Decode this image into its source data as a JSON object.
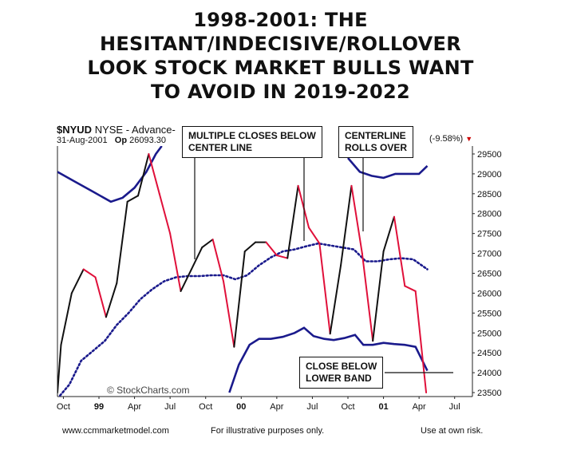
{
  "title_lines": [
    "1998-2001:  THE",
    "HESITANT/INDECISIVE/ROLLOVER",
    "LOOK STOCK MARKET BULLS WANT",
    "TO AVOID IN 2019-2022"
  ],
  "header": {
    "symbol": "$NYUD",
    "desc": "NYSE - Advance-",
    "date": "31-Aug-2001",
    "op_label": "Op",
    "op_value": "26093.30",
    "change": "(-9.58%)",
    "change_arrow": "▼"
  },
  "annotations": {
    "multiple_closes_1": "MULTIPLE CLOSES BELOW",
    "multiple_closes_2": "CENTER LINE",
    "centerline_1": "CENTERLINE",
    "centerline_2": "ROLLS OVER",
    "close_below_1": "CLOSE BELOW",
    "close_below_2": "LOWER BAND"
  },
  "watermark": "© StockCharts.com",
  "footer": {
    "left": "www.ccmmarketmodel.com",
    "center": "For illustrative purposes only.",
    "right": "Use at own risk."
  },
  "colors": {
    "up": "#111111",
    "down": "#e0103a",
    "bands": "#1a1a8c"
  },
  "chart_data": {
    "type": "line",
    "y_ticks": [
      23500,
      24000,
      24500,
      25000,
      25500,
      26000,
      26500,
      27000,
      27500,
      28000,
      28500,
      29000,
      29500
    ],
    "ylim": [
      23400,
      29700
    ],
    "x_ticks": [
      {
        "label": "Oct",
        "t": 0.5
      },
      {
        "label": "99",
        "t": 3.5
      },
      {
        "label": "Apr",
        "t": 6.5
      },
      {
        "label": "Jul",
        "t": 9.5
      },
      {
        "label": "Oct",
        "t": 12.5
      },
      {
        "label": "00",
        "t": 15.5
      },
      {
        "label": "Apr",
        "t": 18.5
      },
      {
        "label": "Jul",
        "t": 21.5
      },
      {
        "label": "Oct",
        "t": 24.5
      },
      {
        "label": "01",
        "t": 27.5
      },
      {
        "label": "Apr",
        "t": 30.5
      },
      {
        "label": "Jul",
        "t": 33.5
      }
    ],
    "xlim": [
      0,
      35
    ],
    "series": [
      {
        "t": 0,
        "v": 23500
      },
      {
        "t": 0.3,
        "v": 24700
      },
      {
        "t": 1.2,
        "v": 26000
      },
      {
        "t": 2.2,
        "v": 26600
      },
      {
        "t": 3.2,
        "v": 26400
      },
      {
        "t": 4.1,
        "v": 25400
      },
      {
        "t": 5.0,
        "v": 26250
      },
      {
        "t": 5.9,
        "v": 28300
      },
      {
        "t": 6.8,
        "v": 28450
      },
      {
        "t": 7.7,
        "v": 29500
      },
      {
        "t": 8.6,
        "v": 28500
      },
      {
        "t": 9.5,
        "v": 27500
      },
      {
        "t": 10.4,
        "v": 26050
      },
      {
        "t": 11.3,
        "v": 26600
      },
      {
        "t": 12.2,
        "v": 27150
      },
      {
        "t": 13.1,
        "v": 27350
      },
      {
        "t": 14.0,
        "v": 26300
      },
      {
        "t": 14.9,
        "v": 24650
      },
      {
        "t": 15.8,
        "v": 27050
      },
      {
        "t": 16.7,
        "v": 27280
      },
      {
        "t": 17.6,
        "v": 27280
      },
      {
        "t": 18.5,
        "v": 26950
      },
      {
        "t": 19.4,
        "v": 26880
      },
      {
        "t": 20.3,
        "v": 28700
      },
      {
        "t": 21.2,
        "v": 27650
      },
      {
        "t": 22.1,
        "v": 27250
      },
      {
        "t": 23.0,
        "v": 24980
      },
      {
        "t": 23.9,
        "v": 26700
      },
      {
        "t": 24.8,
        "v": 28700
      },
      {
        "t": 25.7,
        "v": 27000
      },
      {
        "t": 26.6,
        "v": 24800
      },
      {
        "t": 27.5,
        "v": 27050
      },
      {
        "t": 28.4,
        "v": 27920
      },
      {
        "t": 29.3,
        "v": 26180
      },
      {
        "t": 30.2,
        "v": 26050
      },
      {
        "t": 31.1,
        "v": 23500
      }
    ],
    "upper_band": [
      [
        [
          0,
          29050
        ],
        [
          1.5,
          28800
        ],
        [
          3.0,
          28550
        ],
        [
          4.5,
          28300
        ],
        [
          5.5,
          28400
        ],
        [
          6.5,
          28650
        ],
        [
          7.5,
          29050
        ],
        [
          8.3,
          29500
        ],
        [
          8.8,
          29700
        ]
      ],
      [
        [
          24.5,
          29400
        ],
        [
          25.5,
          29050
        ],
        [
          26.5,
          28950
        ],
        [
          27.5,
          28900
        ],
        [
          28.5,
          29000
        ],
        [
          29.5,
          29000
        ],
        [
          30.5,
          29000
        ],
        [
          31.2,
          29200
        ]
      ]
    ],
    "middle_band": [
      [
        0,
        23350
      ],
      [
        1.0,
        23700
      ],
      [
        2.0,
        24300
      ],
      [
        3.0,
        24550
      ],
      [
        4.0,
        24800
      ],
      [
        5.0,
        25200
      ],
      [
        6.0,
        25500
      ],
      [
        7.0,
        25850
      ],
      [
        8.0,
        26100
      ],
      [
        9.0,
        26300
      ],
      [
        10.0,
        26400
      ],
      [
        11.0,
        26430
      ],
      [
        12.0,
        26430
      ],
      [
        13.0,
        26450
      ],
      [
        14.0,
        26450
      ],
      [
        15.0,
        26350
      ],
      [
        16.0,
        26450
      ],
      [
        17.0,
        26700
      ],
      [
        18.0,
        26900
      ],
      [
        19.0,
        27050
      ],
      [
        20.0,
        27100
      ],
      [
        21.0,
        27180
      ],
      [
        22.0,
        27250
      ],
      [
        23.0,
        27200
      ],
      [
        24.0,
        27150
      ],
      [
        25.0,
        27100
      ],
      [
        26.0,
        26800
      ],
      [
        27.0,
        26800
      ],
      [
        28.0,
        26850
      ],
      [
        29.0,
        26880
      ],
      [
        30.0,
        26850
      ],
      [
        31.2,
        26600
      ]
    ],
    "lower_band": [
      [
        [
          14.5,
          23500
        ],
        [
          15.3,
          24200
        ],
        [
          16.2,
          24700
        ],
        [
          17.0,
          24850
        ],
        [
          18.0,
          24850
        ],
        [
          19.0,
          24900
        ],
        [
          20.0,
          25000
        ],
        [
          20.8,
          25130
        ],
        [
          21.6,
          24920
        ],
        [
          22.5,
          24850
        ],
        [
          23.3,
          24820
        ],
        [
          24.2,
          24870
        ],
        [
          25.1,
          24950
        ],
        [
          25.8,
          24700
        ],
        [
          26.6,
          24700
        ],
        [
          27.5,
          24750
        ],
        [
          28.4,
          24720
        ],
        [
          29.3,
          24700
        ],
        [
          30.2,
          24650
        ],
        [
          31.2,
          24050
        ]
      ]
    ]
  }
}
